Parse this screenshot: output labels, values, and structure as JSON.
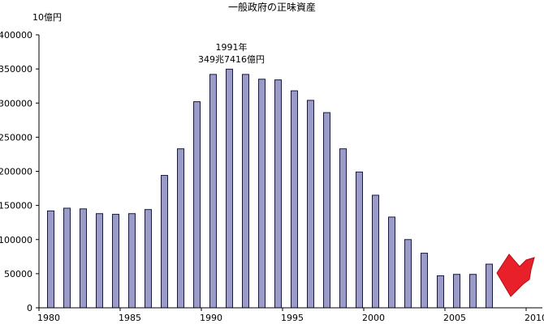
{
  "chart_data": {
    "type": "bar",
    "title": "一般政府の正味資産",
    "ylabel": "10億円",
    "xlabel": "",
    "ylim": [
      0,
      400000
    ],
    "y_ticks": [
      0,
      50000,
      100000,
      150000,
      200000,
      250000,
      300000,
      350000,
      400000
    ],
    "y_tick_labels": [
      "0",
      "50000",
      "100000",
      "150000",
      "200000",
      "250000",
      "300000",
      "350000",
      "400000"
    ],
    "xlim": [
      1980,
      2010
    ],
    "x_ticks": [
      1980,
      1985,
      1990,
      1995,
      2000,
      2005,
      2010
    ],
    "x_tick_labels": [
      "1980",
      "1985",
      "1990",
      "1995",
      "2000",
      "2005",
      "2010"
    ],
    "grid": false,
    "legend": "none",
    "bar_color": "#9b9bc8",
    "bar_edge_color": "#1a1a40",
    "series": [
      {
        "x": [
          1980,
          1981,
          1982,
          1983,
          1984,
          1985,
          1986,
          1987,
          1988,
          1989,
          1990,
          1991,
          1992,
          1993,
          1994,
          1995,
          1996,
          1997,
          1998,
          1999,
          2000,
          2001,
          2002,
          2003,
          2004,
          2005,
          2006,
          2007
        ],
        "values": [
          142000,
          146000,
          145000,
          138000,
          137000,
          138000,
          144000,
          194000,
          233000,
          302000,
          342000,
          349742,
          342000,
          335000,
          334000,
          318000,
          304000,
          286000,
          233000,
          199000,
          165000,
          133000,
          100000,
          80000,
          47000,
          49000,
          49000,
          64000
        ]
      }
    ],
    "annotation": {
      "line1": "1991年",
      "line2": "349兆7416億円",
      "x": 1991,
      "y": 349742
    },
    "arrow_color": "#e8202a"
  }
}
